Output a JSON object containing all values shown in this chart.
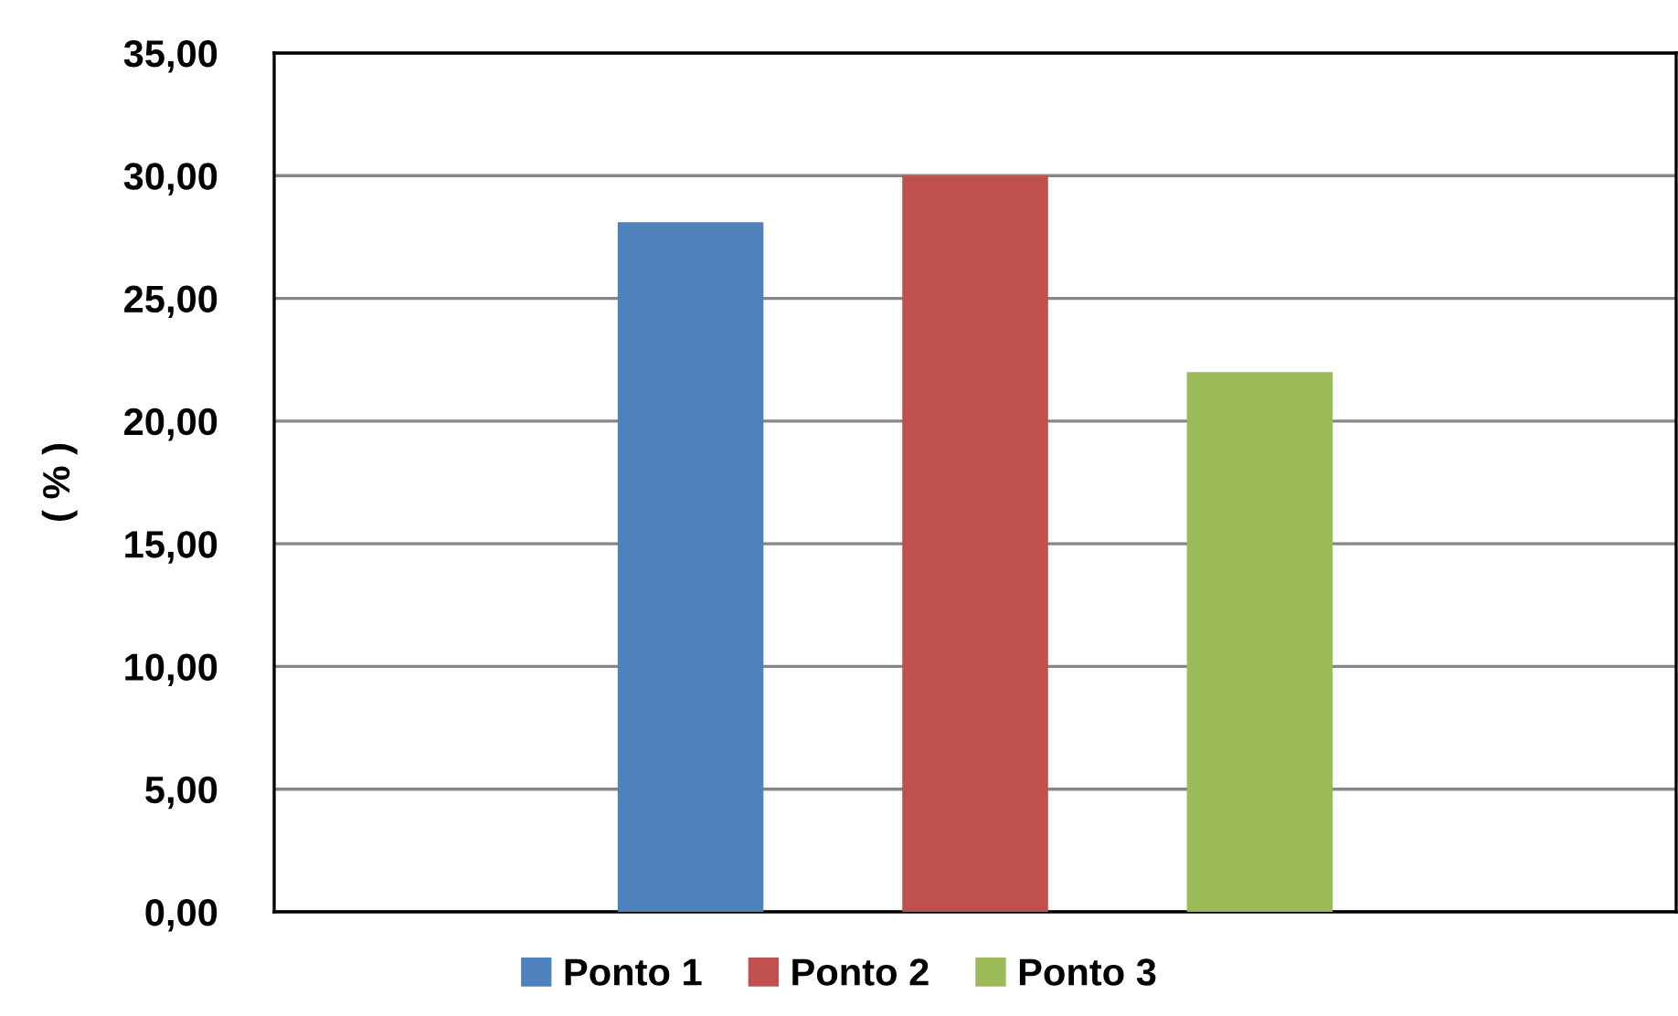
{
  "chart_data": {
    "type": "bar",
    "ylabel": "( % )",
    "categories": [
      null
    ],
    "series": [
      {
        "name": "Ponto 1",
        "color": "#4f81bd",
        "values": [
          28.1
        ]
      },
      {
        "name": "Ponto 2",
        "color": "#c0504d",
        "values": [
          30.0
        ]
      },
      {
        "name": "Ponto 3",
        "color": "#9bbb59",
        "values": [
          22.0
        ]
      }
    ],
    "ylim": [
      0,
      35
    ],
    "yticks": [
      {
        "value": 0,
        "label": "0,00"
      },
      {
        "value": 5,
        "label": "5,00"
      },
      {
        "value": 10,
        "label": "10,00"
      },
      {
        "value": 15,
        "label": "15,00"
      },
      {
        "value": 20,
        "label": "20,00"
      },
      {
        "value": 25,
        "label": "25,00"
      },
      {
        "value": 30,
        "label": "30,00"
      },
      {
        "value": 35,
        "label": "35,00"
      }
    ],
    "grid": "y",
    "legend": "bottom",
    "tick_labels": "y"
  }
}
